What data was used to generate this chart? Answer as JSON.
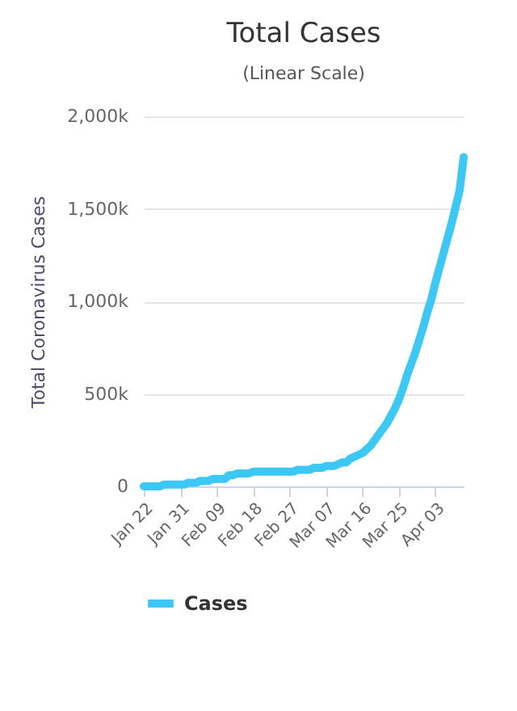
{
  "chart_data": {
    "type": "line",
    "title": "Total Cases",
    "subtitle": "(Linear Scale)",
    "ylabel": "Total Coronavirus Cases",
    "x": [
      "--01-22",
      "--01-23",
      "--01-24",
      "--01-25",
      "--01-26",
      "--01-27",
      "--01-28",
      "--01-29",
      "--01-30",
      "--01-31",
      "--02-01",
      "--02-02",
      "--02-03",
      "--02-04",
      "--02-05",
      "--02-06",
      "--02-07",
      "--02-08",
      "--02-09",
      "--02-10",
      "--02-11",
      "--02-12",
      "--02-13",
      "--02-14",
      "--02-15",
      "--02-16",
      "--02-17",
      "--02-18",
      "--02-19",
      "--02-20",
      "--02-21",
      "--02-22",
      "--02-23",
      "--02-24",
      "--02-25",
      "--02-26",
      "--02-27",
      "--02-28",
      "--02-29",
      "--03-01",
      "--03-02",
      "--03-03",
      "--03-04",
      "--03-05",
      "--03-06",
      "--03-07",
      "--03-08",
      "--03-09",
      "--03-10",
      "--03-11",
      "--03-12",
      "--03-13",
      "--03-14",
      "--03-15",
      "--03-16",
      "--03-17",
      "--03-18",
      "--03-19",
      "--03-20",
      "--03-21",
      "--03-22",
      "--03-23",
      "--03-24",
      "--03-25",
      "--03-26",
      "--03-27",
      "--03-28",
      "--03-29",
      "--03-30",
      "--03-31",
      "--04-01",
      "--04-02",
      "--04-03",
      "--04-04",
      "--04-05",
      "--04-06",
      "--04-07",
      "--04-08",
      "--04-09",
      "--04-10"
    ],
    "series": [
      {
        "name": "Cases",
        "color": "#3cc8f5",
        "values": [
          0,
          0,
          0,
          0,
          0,
          10000,
          10000,
          10000,
          10000,
          10000,
          10000,
          20000,
          20000,
          20000,
          30000,
          30000,
          30000,
          40000,
          40000,
          40000,
          40000,
          60000,
          60000,
          70000,
          70000,
          70000,
          70000,
          80000,
          80000,
          80000,
          80000,
          80000,
          80000,
          80000,
          80000,
          80000,
          80000,
          80000,
          90000,
          90000,
          90000,
          90000,
          100000,
          100000,
          100000,
          110000,
          110000,
          110000,
          120000,
          130000,
          130000,
          150000,
          160000,
          170000,
          180000,
          200000,
          220000,
          250000,
          280000,
          310000,
          340000,
          380000,
          420000,
          470000,
          530000,
          600000,
          660000,
          720000,
          790000,
          860000,
          940000,
          1010000,
          1100000,
          1180000,
          1260000,
          1340000,
          1420000,
          1510000,
          1600000,
          1780000
        ]
      }
    ],
    "xlim": [
      "--01-22",
      "--04-10"
    ],
    "xticks": [
      {
        "value": "--01-22",
        "label": "Jan 22"
      },
      {
        "value": "--01-31",
        "label": "Jan 31"
      },
      {
        "value": "--02-09",
        "label": "Feb 09"
      },
      {
        "value": "--02-18",
        "label": "Feb 18"
      },
      {
        "value": "--02-27",
        "label": "Feb 27"
      },
      {
        "value": "--03-07",
        "label": "Mar 07"
      },
      {
        "value": "--03-16",
        "label": "Mar 16"
      },
      {
        "value": "--03-25",
        "label": "Mar 25"
      },
      {
        "value": "--04-03",
        "label": "Apr 03"
      }
    ],
    "ylim": [
      0,
      2000000
    ],
    "yticks": [
      {
        "value": 0,
        "label": "0"
      },
      {
        "value": 500000,
        "label": "500k"
      },
      {
        "value": 1000000,
        "label": "1,000k"
      },
      {
        "value": 1500000,
        "label": "1,500k"
      },
      {
        "value": 2000000,
        "label": "2,000k"
      }
    ],
    "grid": "y",
    "legend": "bottom",
    "marker": "none",
    "line_style": "solid"
  }
}
